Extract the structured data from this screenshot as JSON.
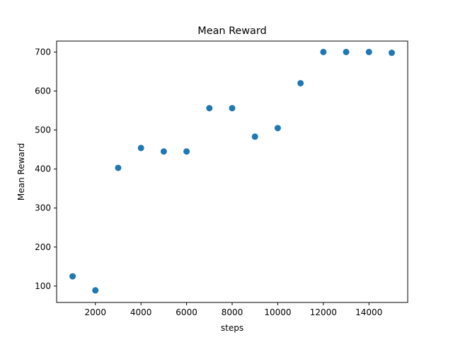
{
  "chart_data": {
    "type": "scatter",
    "title": "Mean Reward",
    "xlabel": "steps",
    "ylabel": "Mean Reward",
    "x": [
      1000,
      2000,
      3000,
      4000,
      5000,
      6000,
      7000,
      8000,
      9000,
      10000,
      11000,
      12000,
      13000,
      14000,
      15000
    ],
    "y": [
      125,
      89,
      403,
      454,
      445,
      445,
      556,
      556,
      483,
      505,
      620,
      700,
      700,
      700,
      698
    ],
    "xlim": [
      300,
      15700
    ],
    "ylim": [
      58,
      728
    ],
    "xticks": [
      2000,
      4000,
      6000,
      8000,
      10000,
      12000,
      14000
    ],
    "yticks": [
      100,
      200,
      300,
      400,
      500,
      600,
      700
    ],
    "grid": false,
    "marker_color": "#1f77b4"
  }
}
